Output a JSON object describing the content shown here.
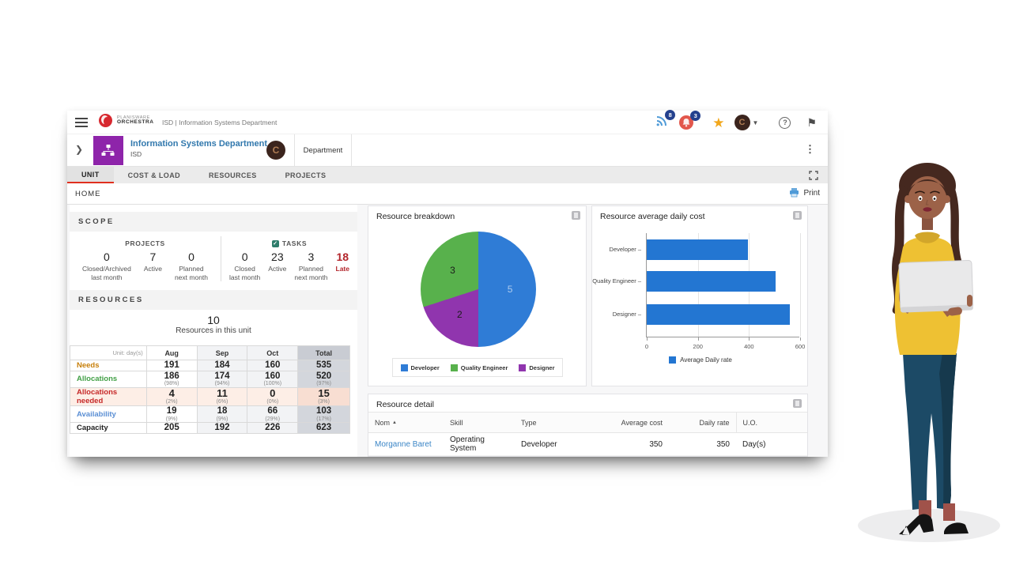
{
  "topbar": {
    "brand_line1": "PLANISWARE",
    "brand_line2": "ORCHESTRA",
    "context_title": "ISD | Information Systems Department",
    "feed_badge": "8",
    "notification_badge": "3",
    "avatar_letter": "C"
  },
  "entity": {
    "title": "Information Systems Department",
    "subtitle": "ISD",
    "avatar_letter": "C",
    "type_label": "Department"
  },
  "tabs": [
    {
      "label": "UNIT",
      "active": true
    },
    {
      "label": "COST & LOAD",
      "active": false
    },
    {
      "label": "RESOURCES",
      "active": false
    },
    {
      "label": "PROJECTS",
      "active": false
    }
  ],
  "breadcrumb": "HOME",
  "print_label": "Print",
  "scope": {
    "header": "SCOPE",
    "projects": {
      "label": "PROJECTS",
      "stats": [
        {
          "value": "0",
          "caption": "Closed/Archived\nlast month"
        },
        {
          "value": "7",
          "caption": "Active"
        },
        {
          "value": "0",
          "caption": "Planned\nnext month"
        }
      ]
    },
    "tasks": {
      "label": "TASKS",
      "stats": [
        {
          "value": "0",
          "caption": "Closed\nlast month"
        },
        {
          "value": "23",
          "caption": "Active"
        },
        {
          "value": "3",
          "caption": "Planned\nnext month"
        },
        {
          "value": "18",
          "caption": "Late",
          "late": true
        }
      ]
    }
  },
  "resources": {
    "header": "RESOURCES",
    "count": "10",
    "caption": "Resources in this unit",
    "unit_label": "Unit: day(s)",
    "months": [
      "Aug",
      "Sep",
      "Oct",
      "Total"
    ],
    "rows": [
      {
        "label": "Needs",
        "color": "#c77f0a",
        "values": [
          "191",
          "184",
          "160",
          "535"
        ],
        "pcts": [
          "",
          "",
          "",
          ""
        ]
      },
      {
        "label": "Allocations",
        "color": "#43a047",
        "values": [
          "186",
          "174",
          "160",
          "520"
        ],
        "pcts": [
          "(98%)",
          "(94%)",
          "(100%)",
          "(97%)"
        ]
      },
      {
        "label": "Allocations needed",
        "color": "#c62828",
        "highlight": true,
        "values": [
          "4",
          "11",
          "0",
          "15"
        ],
        "pcts": [
          "(2%)",
          "(6%)",
          "(0%)",
          "(3%)"
        ]
      },
      {
        "label": "Availability",
        "color": "#5b8fd4",
        "values": [
          "19",
          "18",
          "66",
          "103"
        ],
        "pcts": [
          "(9%)",
          "(9%)",
          "(29%)",
          "(17%)"
        ]
      },
      {
        "label": "Capacity",
        "color": "#222222",
        "values": [
          "205",
          "192",
          "226",
          "623"
        ],
        "pcts": [
          "",
          "",
          "",
          ""
        ]
      }
    ]
  },
  "chart_data": [
    {
      "type": "pie",
      "title": "Resource breakdown",
      "slices": [
        {
          "label": "Developer",
          "value": 5,
          "color": "#2f7cd6",
          "value_color": "rgba(255,255,255,0.6)"
        },
        {
          "label": "Quality Engineer",
          "value": 3,
          "color": "#58b14c",
          "value_color": "#1b1b1b"
        },
        {
          "label": "Designer",
          "value": 2,
          "color": "#9035ae",
          "value_color": "#1b1b1b"
        }
      ],
      "draw_sequence": [
        "Developer",
        "Designer",
        "Quality Engineer"
      ],
      "legend_position": "bottom"
    },
    {
      "type": "bar",
      "title": "Resource average daily cost",
      "categories": [
        "Developer",
        "Quality Engineer",
        "Designer"
      ],
      "values": [
        395,
        505,
        560
      ],
      "xticks": [
        0,
        200,
        400,
        600
      ],
      "xlim": [
        0,
        600
      ],
      "bar_color": "#2376d2",
      "legend": "Average Daily rate",
      "legend_position": "bottom"
    }
  ],
  "detail": {
    "title": "Resource detail",
    "columns": [
      "Nom",
      "Skill",
      "Type",
      "Average cost",
      "Daily rate",
      "U.O."
    ],
    "numeric_columns": [
      3,
      4
    ],
    "sorted_column": 0,
    "rows": [
      [
        "Morganne Baret",
        "Operating System",
        "Developer",
        "350",
        "350",
        "Day(s)"
      ]
    ]
  },
  "colors": {
    "brand_red": "#d7282f",
    "accent_purple": "#8e24aa",
    "active_tab_red": "#e0301e",
    "link_blue": "#3178ad",
    "badge_navy": "#24418e",
    "star_orange": "#f2a71b"
  }
}
